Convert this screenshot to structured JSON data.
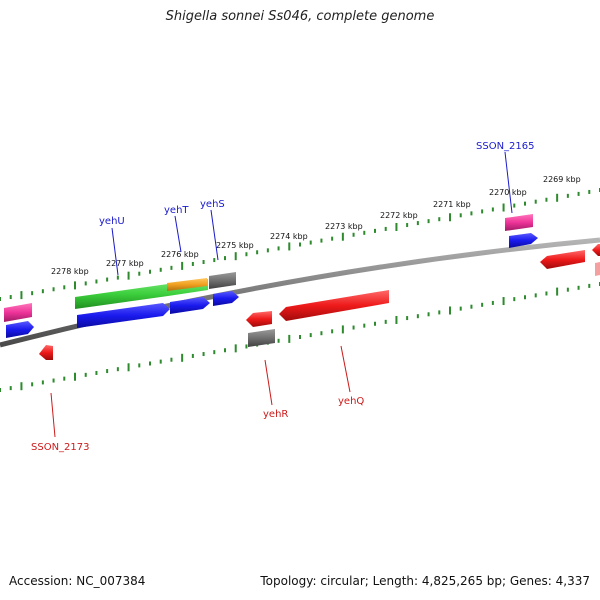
{
  "title": "Shigella sonnei Ss046, complete genome",
  "footer": {
    "accession": "Accession: NC_007384",
    "summary": "Topology: circular; Length: 4,825,265 bp; Genes: 4,337"
  },
  "scale_labels": [
    "2278 kbp",
    "2277 kbp",
    "2276 kbp",
    "2275 kbp",
    "2274 kbp",
    "2273 kbp",
    "2272 kbp",
    "2271 kbp",
    "2270 kbp",
    "2269 kbp"
  ],
  "genes_top": [
    "yehU",
    "yehT",
    "yehS",
    "SSON_2165"
  ],
  "genes_bottom": [
    "SSON_2173",
    "yehR",
    "yehQ"
  ],
  "colors": {
    "backbone": "#8a8a8a",
    "ticks": "#2d8a2d",
    "forward_label": "#1a1acc",
    "reverse_label": "#cc1a1a",
    "cds_blue": "#1a1aee",
    "cds_red": "#ee1a1a",
    "cds_green": "#3ccf3c",
    "cds_orange": "#f0a020",
    "cds_gray": "#707070",
    "cds_pink": "#ee3399"
  }
}
